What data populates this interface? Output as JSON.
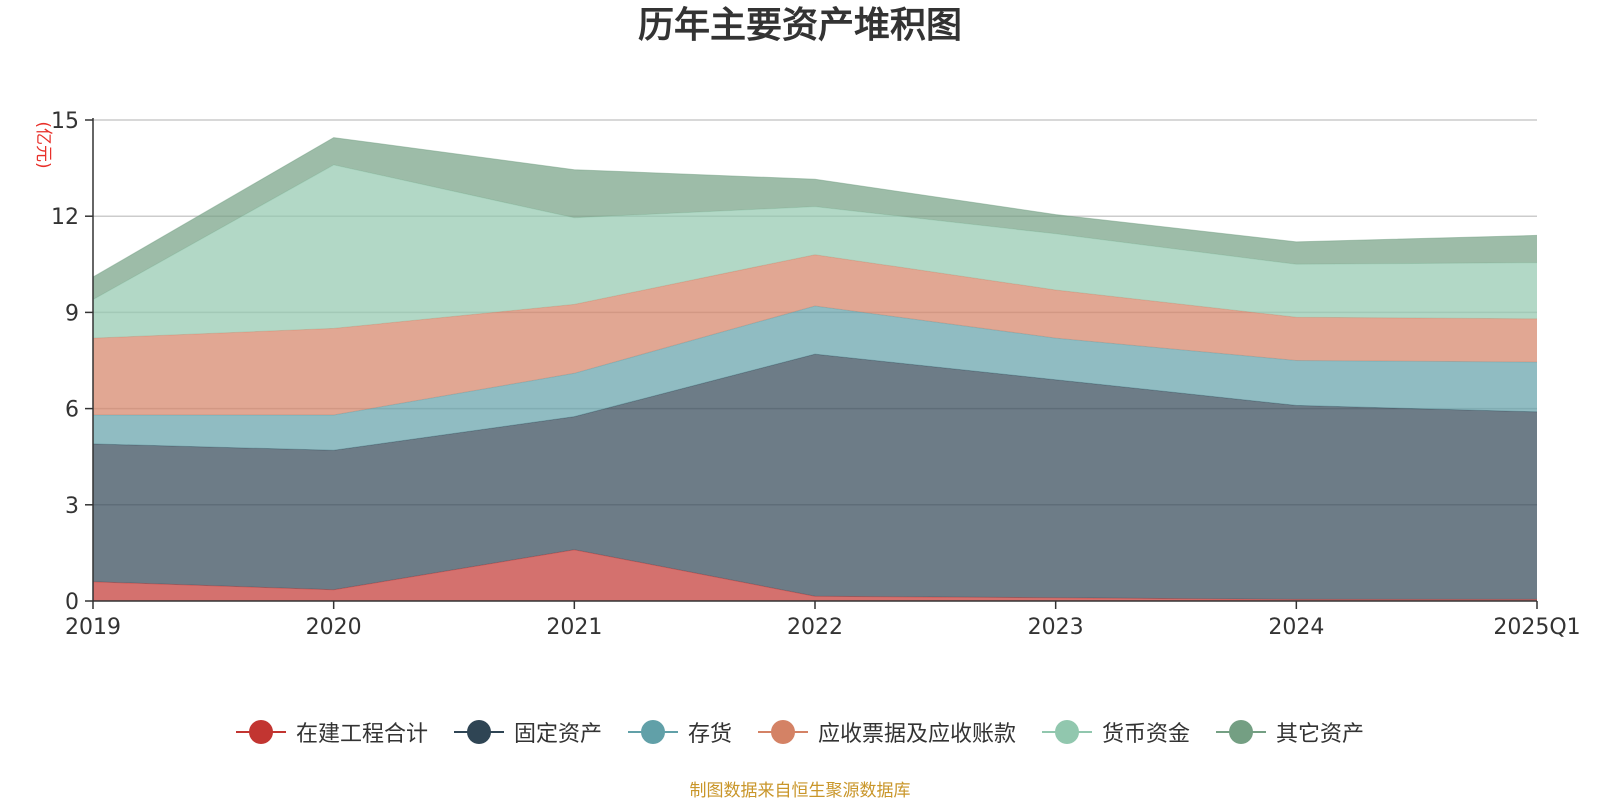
{
  "chart_data": {
    "type": "area",
    "stacked": true,
    "title": "历年主要资产堆积图",
    "ylabel": "(亿元)",
    "xlabel": "",
    "categories": [
      "2019",
      "2020",
      "2021",
      "2022",
      "2023",
      "2024",
      "2025Q1"
    ],
    "ylim": [
      0,
      15
    ],
    "yticks": [
      0,
      3,
      6,
      9,
      12,
      15
    ],
    "grid": true,
    "legend_position": "bottom",
    "series": [
      {
        "name": "在建工程合计",
        "color": "#c23531",
        "values": [
          0.6,
          0.35,
          1.6,
          0.15,
          0.1,
          0.05,
          0.05
        ]
      },
      {
        "name": "固定资产",
        "color": "#2f4554",
        "values": [
          4.3,
          4.35,
          4.15,
          7.55,
          6.8,
          6.05,
          5.85
        ]
      },
      {
        "name": "存货",
        "color": "#61a0a8",
        "values": [
          0.9,
          1.1,
          1.35,
          1.5,
          1.3,
          1.4,
          1.55
        ]
      },
      {
        "name": "应收票据及应收账款",
        "color": "#d48265",
        "values": [
          2.4,
          2.7,
          2.15,
          1.6,
          1.5,
          1.35,
          1.35
        ]
      },
      {
        "name": "货币资金",
        "color": "#91c7ae",
        "values": [
          1.2,
          5.1,
          2.7,
          1.5,
          1.75,
          1.65,
          1.75
        ]
      },
      {
        "name": "其它资产",
        "color": "#749f83",
        "values": [
          0.7,
          0.85,
          1.5,
          0.85,
          0.6,
          0.7,
          0.85
        ]
      }
    ]
  },
  "source_text": "制图数据来自恒生聚源数据库"
}
